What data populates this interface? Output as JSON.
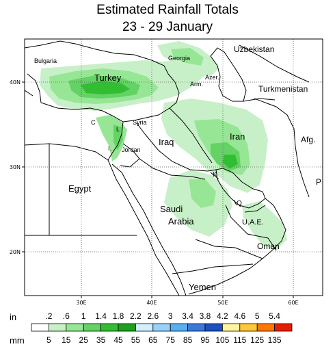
{
  "title": {
    "line1": "Estimated Rainfall Totals",
    "line2": "23 - 29 January"
  },
  "axes": {
    "lat_ticks": [
      "40N",
      "30N",
      "20N"
    ],
    "lon_ticks": [
      "30E",
      "40E",
      "50E",
      "60E"
    ]
  },
  "places": [
    {
      "key": "bulgaria",
      "label": "Bulgaria"
    },
    {
      "key": "georgia",
      "label": "Georgia"
    },
    {
      "key": "uzbekistan",
      "label": "Uzbekistan"
    },
    {
      "key": "turkey",
      "label": "Turkey"
    },
    {
      "key": "armenia",
      "label": "Arm."
    },
    {
      "key": "azerbaijan",
      "label": "Azer."
    },
    {
      "key": "turkmenistan",
      "label": "Turkmenistan"
    },
    {
      "key": "cyprus",
      "label": "C"
    },
    {
      "key": "lebanon",
      "label": "L"
    },
    {
      "key": "syria",
      "label": "Syria"
    },
    {
      "key": "iran",
      "label": "Iran"
    },
    {
      "key": "afghanistan",
      "label": "Afg."
    },
    {
      "key": "iraq",
      "label": "Iraq"
    },
    {
      "key": "israel",
      "label": "I."
    },
    {
      "key": "jordan",
      "label": "Jordan"
    },
    {
      "key": "kuwait",
      "label": "K"
    },
    {
      "key": "pakistan",
      "label": "P"
    },
    {
      "key": "egypt",
      "label": "Egypt"
    },
    {
      "key": "qatar",
      "label": "Q"
    },
    {
      "key": "saudi1",
      "label": "Saudi"
    },
    {
      "key": "saudi2",
      "label": "Arabia"
    },
    {
      "key": "uae",
      "label": "U.A.E."
    },
    {
      "key": "oman",
      "label": "Oman"
    },
    {
      "key": "yemen",
      "label": "Yemen"
    }
  ],
  "legend": {
    "in_label": "in",
    "mm_label": "mm",
    "inch_values": [
      ".2",
      ".6",
      "1",
      "1.4",
      "1.8",
      "2.2",
      "2.6",
      "3",
      "3.4",
      "3.8",
      "4.2",
      "4.6",
      "5",
      "5.4"
    ],
    "mm_values": [
      "5",
      "15",
      "25",
      "35",
      "45",
      "55",
      "65",
      "75",
      "85",
      "95",
      "105",
      "115",
      "125",
      "135"
    ],
    "colors": [
      "#ffffff",
      "#c8f0c8",
      "#96e696",
      "#64d264",
      "#32be32",
      "#1ea01e",
      "#d2f0ff",
      "#96d2fa",
      "#5aaff0",
      "#3c78dc",
      "#1e50be",
      "#fff5a0",
      "#ffc83c",
      "#ff7800",
      "#e61e00"
    ]
  },
  "colors": {
    "rain_light": "#c8f0c8",
    "rain_mid": "#96e696",
    "rain_heavy": "#64d264",
    "rain_heavier": "#32be32",
    "rain_darkest": "#1ea01e"
  }
}
